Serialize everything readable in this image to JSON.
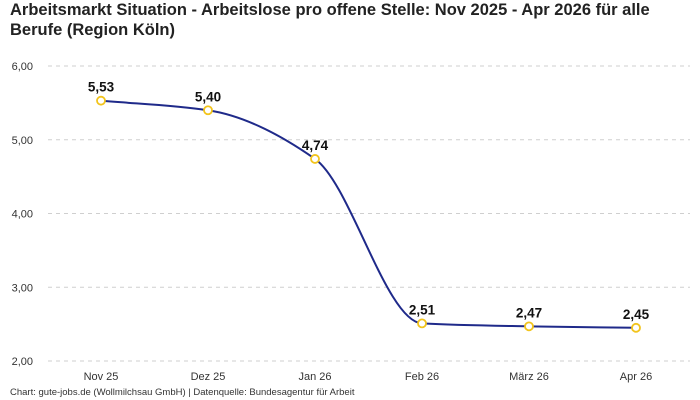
{
  "chart_data": {
    "type": "line",
    "title": "Arbeitsmarkt Situation - Arbeitslose pro offene Stelle: Nov 2025 - Apr 2026 für alle Berufe (Region Köln)",
    "categories": [
      "Nov 25",
      "Dez 25",
      "Jan 26",
      "Feb 26",
      "März 26",
      "Apr 26"
    ],
    "series": [
      {
        "values": [
          5.53,
          5.4,
          4.74,
          2.51,
          2.47,
          2.45
        ],
        "value_labels": [
          "5,53",
          "5,40",
          "4,74",
          "2,51",
          "2,47",
          "2,45"
        ]
      }
    ],
    "y_ticks": [
      2.0,
      3.0,
      4.0,
      5.0,
      6.0
    ],
    "y_tick_labels": [
      "2,00",
      "3,00",
      "4,00",
      "5,00",
      "6,00"
    ],
    "ylim": [
      2.0,
      6.0
    ],
    "grid": true,
    "line_color": "#1f2a8a",
    "marker_color": "#f2c41c",
    "marker_fill": "#ffffff",
    "grid_color": "#cfcfcf"
  },
  "footer": {
    "text": "Chart: gute-jobs.de (Wollmilchsau GmbH) | Datenquelle: Bundesagentur für Arbeit"
  }
}
